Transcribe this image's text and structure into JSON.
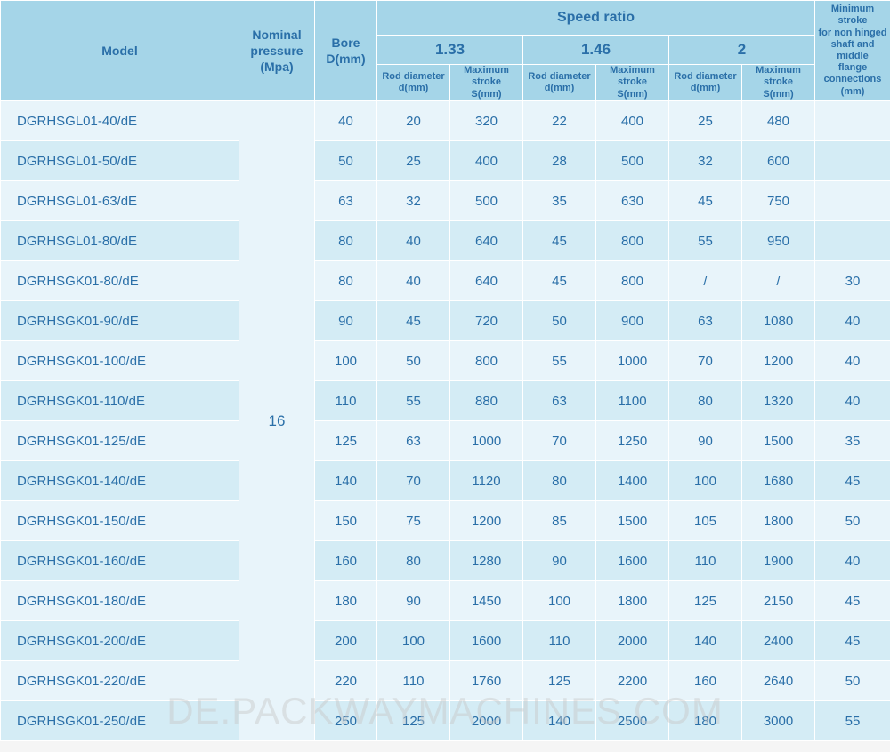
{
  "headers": {
    "model": "Model",
    "nominal_pressure": "Nominal\npressure\n(Mpa)",
    "bore": "Bore\nD(mm)",
    "speed_ratio": "Speed ratio",
    "ratios": [
      "1.33",
      "1.46",
      "2"
    ],
    "rod_diameter": "Rod  diameter\nd(mm)",
    "max_stroke": "Maximum stroke\nS(mm)",
    "min_stroke": "Minimum stroke\nfor non hinged\nshaft and middle\nflange\nconnections\n(mm)"
  },
  "nominal_pressure_value": "16",
  "columns": {
    "model_width": 268,
    "pressure_width": 85,
    "bore_width": 70,
    "ratio_col_width": 80,
    "min_stroke_width": 81
  },
  "colors": {
    "header_bg": "#a5d5e8",
    "row_light": "#e8f4fa",
    "row_dark": "#d4ecf5",
    "text": "#2a6fa8",
    "border": "#ffffff"
  },
  "watermark": "DE.PACKWAYMACHINES.COM",
  "rows": [
    {
      "model": "DGRHSGL01-40/dE",
      "bore": "40",
      "r1_rod": "20",
      "r1_stroke": "320",
      "r2_rod": "22",
      "r2_stroke": "400",
      "r3_rod": "25",
      "r3_stroke": "480",
      "min": ""
    },
    {
      "model": "DGRHSGL01-50/dE",
      "bore": "50",
      "r1_rod": "25",
      "r1_stroke": "400",
      "r2_rod": "28",
      "r2_stroke": "500",
      "r3_rod": "32",
      "r3_stroke": "600",
      "min": ""
    },
    {
      "model": "DGRHSGL01-63/dE",
      "bore": "63",
      "r1_rod": "32",
      "r1_stroke": "500",
      "r2_rod": "35",
      "r2_stroke": "630",
      "r3_rod": "45",
      "r3_stroke": "750",
      "min": ""
    },
    {
      "model": "DGRHSGL01-80/dE",
      "bore": "80",
      "r1_rod": "40",
      "r1_stroke": "640",
      "r2_rod": "45",
      "r2_stroke": "800",
      "r3_rod": "55",
      "r3_stroke": "950",
      "min": ""
    },
    {
      "model": "DGRHSGK01-80/dE",
      "bore": "80",
      "r1_rod": "40",
      "r1_stroke": "640",
      "r2_rod": "45",
      "r2_stroke": "800",
      "r3_rod": "/",
      "r3_stroke": "/",
      "min": "30"
    },
    {
      "model": "DGRHSGK01-90/dE",
      "bore": "90",
      "r1_rod": "45",
      "r1_stroke": "720",
      "r2_rod": "50",
      "r2_stroke": "900",
      "r3_rod": "63",
      "r3_stroke": "1080",
      "min": "40"
    },
    {
      "model": "DGRHSGK01-100/dE",
      "bore": "100",
      "r1_rod": "50",
      "r1_stroke": "800",
      "r2_rod": "55",
      "r2_stroke": "1000",
      "r3_rod": "70",
      "r3_stroke": "1200",
      "min": "40"
    },
    {
      "model": "DGRHSGK01-110/dE",
      "bore": "110",
      "r1_rod": "55",
      "r1_stroke": "880",
      "r2_rod": "63",
      "r2_stroke": "1100",
      "r3_rod": "80",
      "r3_stroke": "1320",
      "min": "40"
    },
    {
      "model": "DGRHSGK01-125/dE",
      "bore": "125",
      "r1_rod": "63",
      "r1_stroke": "1000",
      "r2_rod": "70",
      "r2_stroke": "1250",
      "r3_rod": "90",
      "r3_stroke": "1500",
      "min": "35"
    },
    {
      "model": "DGRHSGK01-140/dE",
      "bore": "140",
      "r1_rod": "70",
      "r1_stroke": "1120",
      "r2_rod": "80",
      "r2_stroke": "1400",
      "r3_rod": "100",
      "r3_stroke": "1680",
      "min": "45"
    },
    {
      "model": "DGRHSGK01-150/dE",
      "bore": "150",
      "r1_rod": "75",
      "r1_stroke": "1200",
      "r2_rod": "85",
      "r2_stroke": "1500",
      "r3_rod": "105",
      "r3_stroke": "1800",
      "min": "50"
    },
    {
      "model": "DGRHSGK01-160/dE",
      "bore": "160",
      "r1_rod": "80",
      "r1_stroke": "1280",
      "r2_rod": "90",
      "r2_stroke": "1600",
      "r3_rod": "110",
      "r3_stroke": "1900",
      "min": "40"
    },
    {
      "model": "DGRHSGK01-180/dE",
      "bore": "180",
      "r1_rod": "90",
      "r1_stroke": "1450",
      "r2_rod": "100",
      "r2_stroke": "1800",
      "r3_rod": "125",
      "r3_stroke": "2150",
      "min": "45"
    },
    {
      "model": "DGRHSGK01-200/dE",
      "bore": "200",
      "r1_rod": "100",
      "r1_stroke": "1600",
      "r2_rod": "110",
      "r2_stroke": "2000",
      "r3_rod": "140",
      "r3_stroke": "2400",
      "min": "45"
    },
    {
      "model": "DGRHSGK01-220/dE",
      "bore": "220",
      "r1_rod": "110",
      "r1_stroke": "1760",
      "r2_rod": "125",
      "r2_stroke": "2200",
      "r3_rod": "160",
      "r3_stroke": "2640",
      "min": "50"
    },
    {
      "model": "DGRHSGK01-250/dE",
      "bore": "250",
      "r1_rod": "125",
      "r1_stroke": "2000",
      "r2_rod": "140",
      "r2_stroke": "2500",
      "r3_rod": "180",
      "r3_stroke": "3000",
      "min": "55"
    }
  ]
}
